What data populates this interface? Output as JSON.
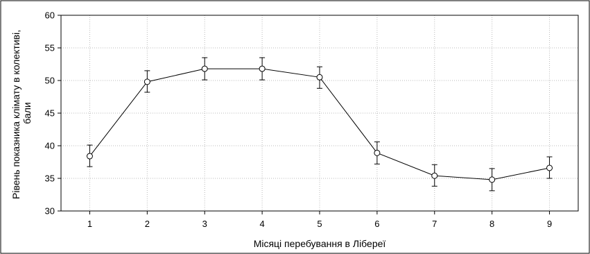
{
  "chart_data": {
    "type": "line",
    "title": "",
    "xlabel": "Місяці перебування в Лібереї",
    "ylabel": "Рівень показника клімату в колективі, бали",
    "ylabel_lines": [
      "Рівень показника клімату в колективі,",
      "бали"
    ],
    "x": [
      1,
      2,
      3,
      4,
      5,
      6,
      7,
      8,
      9
    ],
    "x_tick_labels": [
      "1",
      "2",
      "3",
      "4",
      "5",
      "6",
      "7",
      "8",
      "9"
    ],
    "y_ticks": [
      30,
      35,
      40,
      45,
      50,
      55,
      60
    ],
    "y_tick_labels": [
      "30",
      "35",
      "40",
      "45",
      "50",
      "55",
      "60"
    ],
    "ylim": [
      30,
      60
    ],
    "xlim": [
      0.5,
      9.5
    ],
    "grid": true,
    "series": [
      {
        "values": [
          38.4,
          49.8,
          51.8,
          51.8,
          50.5,
          38.9,
          35.4,
          34.8,
          36.6
        ],
        "error_low": [
          36.8,
          48.2,
          50.1,
          50.1,
          48.8,
          37.2,
          33.8,
          33.1,
          35.0
        ],
        "error_high": [
          40.1,
          51.5,
          53.5,
          53.5,
          52.1,
          40.6,
          37.1,
          36.5,
          38.3
        ],
        "color": "#000000",
        "marker": "open-circle"
      }
    ]
  }
}
